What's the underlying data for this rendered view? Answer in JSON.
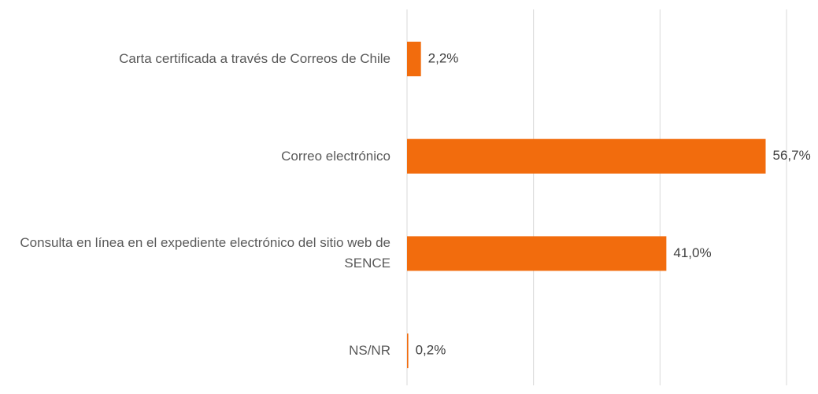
{
  "chart_data": {
    "type": "bar",
    "orientation": "horizontal",
    "categories": [
      "Carta certificada a través de Correos de Chile",
      "Correo electrónico",
      "Consulta en línea en el expediente electrónico del sitio web de SENCE",
      "NS/NR"
    ],
    "values": [
      2.2,
      56.7,
      41.0,
      0.2
    ],
    "value_labels": [
      "2,2%",
      "56,7%",
      "41,0%",
      "0,2%"
    ],
    "color": "#f26c0d",
    "xlim": [
      0,
      60
    ],
    "xticks": [
      0,
      20,
      40,
      60
    ],
    "grid": true
  }
}
